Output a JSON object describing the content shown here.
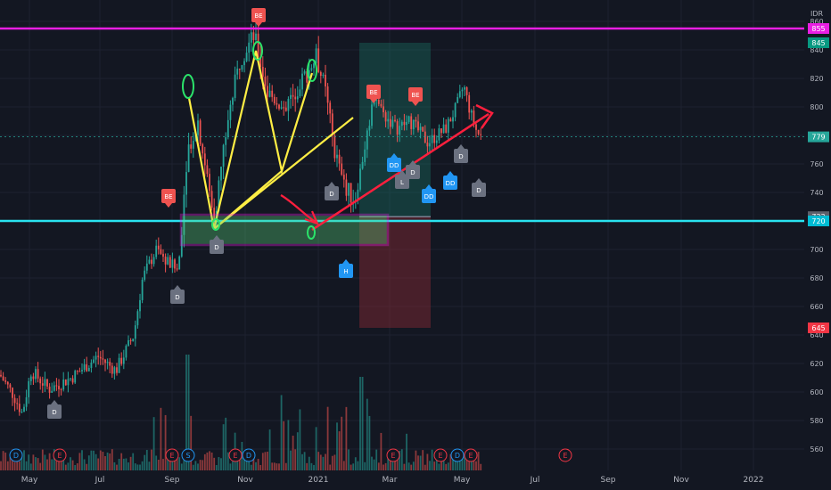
{
  "chart_data": {
    "type": "candlestick",
    "currency_label": "IDR",
    "y_range": [
      545,
      875
    ],
    "y_ticks": [
      560,
      580,
      600,
      620,
      640,
      660,
      680,
      700,
      720,
      740,
      760,
      780,
      800,
      820,
      840,
      860
    ],
    "x_ticks": [
      "May",
      "Jul",
      "Sep",
      "Nov",
      "2021",
      "Mar",
      "May",
      "Jul",
      "Sep",
      "Nov",
      "2022"
    ],
    "price_tags": [
      {
        "label": "855",
        "value": 855,
        "color": "#e91ee3"
      },
      {
        "label": "845",
        "value": 845,
        "color": "#089981"
      },
      {
        "label": "779",
        "value": 779,
        "color": "#26a69a"
      },
      {
        "label": "723",
        "value": 723,
        "color": "#5d606b"
      },
      {
        "label": "720",
        "value": 720,
        "color": "#00bcd4"
      },
      {
        "label": "645",
        "value": 645,
        "color": "#f23645"
      }
    ],
    "horizontal_lines": [
      {
        "value": 855,
        "color": "#e91ee3"
      },
      {
        "value": 720,
        "color": "#29e3f0"
      }
    ],
    "position_box": {
      "entry": 723,
      "target": 845,
      "stop": 645
    },
    "signals": [
      {
        "label": "BE",
        "color": "#ef5350"
      },
      {
        "label": "BE",
        "color": "#ef5350"
      },
      {
        "label": "BE",
        "color": "#ef5350"
      },
      {
        "label": "BE",
        "color": "#ef5350"
      },
      {
        "label": "D",
        "color": "#6b7180"
      },
      {
        "label": "D",
        "color": "#6b7180"
      },
      {
        "label": "D",
        "color": "#6b7180"
      },
      {
        "label": "D",
        "color": "#6b7180"
      },
      {
        "label": "D",
        "color": "#6b7180"
      },
      {
        "label": "D",
        "color": "#6b7180"
      },
      {
        "label": "DD",
        "color": "#2196f3"
      },
      {
        "label": "DD",
        "color": "#2196f3"
      },
      {
        "label": "DD",
        "color": "#2196f3"
      },
      {
        "label": "D",
        "color": "#6b7180"
      },
      {
        "label": "L",
        "color": "#6b7180"
      },
      {
        "label": "H",
        "color": "#2196f3"
      }
    ],
    "events": [
      {
        "label": "D",
        "color": "#2196f3"
      },
      {
        "label": "E",
        "color": "#f23645"
      },
      {
        "label": "E",
        "color": "#f23645"
      },
      {
        "label": "S",
        "color": "#2196f3"
      },
      {
        "label": "E",
        "color": "#f23645"
      },
      {
        "label": "D",
        "color": "#2196f3"
      },
      {
        "label": "E",
        "color": "#f23645"
      },
      {
        "label": "E",
        "color": "#f23645"
      },
      {
        "label": "D",
        "color": "#2196f3"
      },
      {
        "label": "E",
        "color": "#f23645"
      },
      {
        "label": "E",
        "color": "#f23645"
      }
    ],
    "colors": {
      "background": "#131722",
      "grid": "#1e2230",
      "up": "#26a69a",
      "down": "#ef5350",
      "axis_text": "#b2b5be",
      "drawing_yellow": "#ffee44",
      "drawing_magenta": "#e91ee3",
      "drawing_red": "#ff1f3d",
      "drawing_green": "#2be36a"
    }
  }
}
